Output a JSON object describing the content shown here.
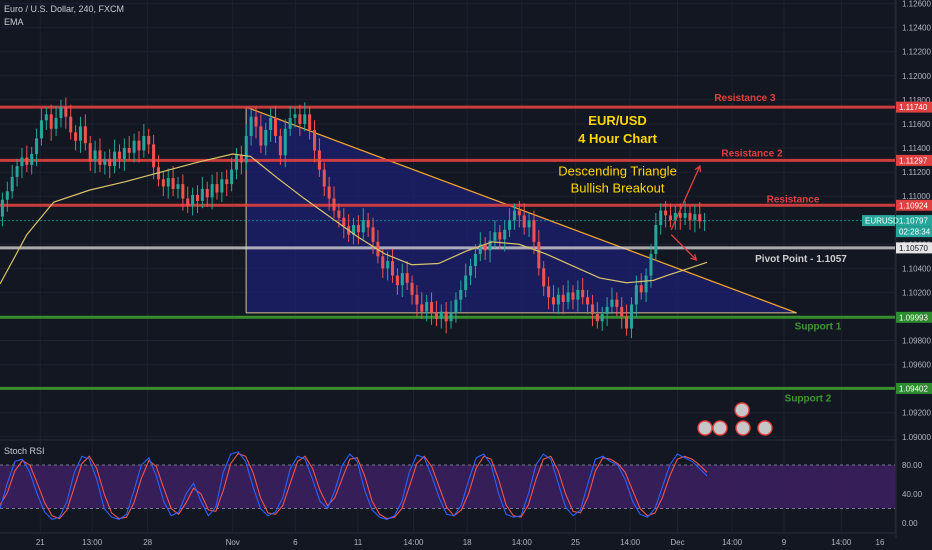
{
  "header": {
    "symbol": "Euro / U.S. Dollar, 240, FXCM",
    "indicator": "EMA"
  },
  "rsi_panel": {
    "label": "Stoch RSI"
  },
  "price_badges": [
    {
      "label": "1.11740",
      "value": 1.1174,
      "color": "#e04040"
    },
    {
      "label": "1.11297",
      "value": 1.11297,
      "color": "#e04040"
    },
    {
      "label": "1.10924",
      "value": 1.10924,
      "color": "#e04040"
    },
    {
      "label": "1.10797",
      "value": 1.10797,
      "color": "#26a69a"
    },
    {
      "label": "02:28:34",
      "value": 1.10705,
      "color": "#26a69a"
    },
    {
      "label": "1.10570",
      "value": 1.1057,
      "color": "#e6e6e6"
    },
    {
      "label": "1.09993",
      "value": 1.09993,
      "color": "#2e8b2e"
    },
    {
      "label": "1.09402",
      "value": 1.09402,
      "color": "#2e8b2e"
    }
  ],
  "symbol_tag": {
    "label": "EURUSD",
    "value": 1.10797,
    "color": "#26a69a"
  },
  "colors": {
    "background": "#131722",
    "up": "#26a69a",
    "down": "#ef5350",
    "ema": "#d8c46a",
    "resistance": "#e04040",
    "support": "#3a9a2e",
    "pivot": "#dcdcdc",
    "triangle_fill": "#1b1f6e",
    "triangle_edge": "#f0a030",
    "stoch_k": "#2962ff",
    "stoch_d": "#ef5350",
    "rsi_band": "#3b1f5e"
  },
  "chart_data": {
    "type": "candlestick",
    "ylim": [
      1.0899,
      1.1263
    ],
    "yticks": [
      "1.12600",
      "1.12400",
      "1.12200",
      "1.12000",
      "1.11800",
      "1.11600",
      "1.11400",
      "1.11200",
      "1.11000",
      "1.10800",
      "1.10600",
      "1.10400",
      "1.10200",
      "1.10000",
      "1.09800",
      "1.09600",
      "1.09400",
      "1.09200",
      "1.09000"
    ],
    "ytick_values": [
      1.126,
      1.124,
      1.122,
      1.12,
      1.118,
      1.116,
      1.114,
      1.112,
      1.11,
      1.108,
      1.106,
      1.104,
      1.102,
      1.1,
      1.098,
      1.096,
      1.094,
      1.092,
      1.09
    ],
    "xticks": [
      "21",
      "13:00",
      "28",
      "Nov",
      "6",
      "11",
      "14:00",
      "18",
      "14:00",
      "25",
      "14:00",
      "Dec",
      "14:00",
      "9",
      "14:00",
      "16"
    ],
    "xtick_frac": [
      0.045,
      0.103,
      0.165,
      0.26,
      0.33,
      0.4,
      0.462,
      0.522,
      0.583,
      0.643,
      0.704,
      0.757,
      0.818,
      0.876,
      0.94,
      1.0
    ],
    "candle_count": 150,
    "candle_range_frac": [
      0.0,
      0.79
    ],
    "candles": [
      {
        "o": 1.1083,
        "c": 1.1097
      },
      {
        "o": 1.1097,
        "c": 1.1104
      },
      {
        "o": 1.1104,
        "c": 1.1116
      },
      {
        "o": 1.1116,
        "c": 1.1125
      },
      {
        "o": 1.1125,
        "c": 1.1132
      },
      {
        "o": 1.1132,
        "c": 1.1126
      },
      {
        "o": 1.1126,
        "c": 1.1135
      },
      {
        "o": 1.1135,
        "c": 1.1148
      },
      {
        "o": 1.1148,
        "c": 1.1163
      },
      {
        "o": 1.1163,
        "c": 1.1168
      },
      {
        "o": 1.1168,
        "c": 1.1156
      },
      {
        "o": 1.1156,
        "c": 1.1165
      },
      {
        "o": 1.1165,
        "c": 1.1174
      },
      {
        "o": 1.1174,
        "c": 1.1166
      },
      {
        "o": 1.1166,
        "c": 1.1153
      },
      {
        "o": 1.1153,
        "c": 1.1146
      },
      {
        "o": 1.1146,
        "c": 1.1158
      },
      {
        "o": 1.1158,
        "c": 1.1144
      },
      {
        "o": 1.1144,
        "c": 1.1129
      },
      {
        "o": 1.1129,
        "c": 1.1138
      },
      {
        "o": 1.1138,
        "c": 1.1126
      },
      {
        "o": 1.1126,
        "c": 1.1131
      },
      {
        "o": 1.1131,
        "c": 1.1125
      },
      {
        "o": 1.1125,
        "c": 1.1137
      },
      {
        "o": 1.1137,
        "c": 1.1131
      },
      {
        "o": 1.1131,
        "c": 1.114
      },
      {
        "o": 1.114,
        "c": 1.1136
      },
      {
        "o": 1.1136,
        "c": 1.1146
      },
      {
        "o": 1.1146,
        "c": 1.1138
      },
      {
        "o": 1.1138,
        "c": 1.115
      },
      {
        "o": 1.115,
        "c": 1.1143
      },
      {
        "o": 1.1143,
        "c": 1.1124
      },
      {
        "o": 1.1124,
        "c": 1.1114
      },
      {
        "o": 1.1114,
        "c": 1.1108
      },
      {
        "o": 1.1108,
        "c": 1.1115
      },
      {
        "o": 1.1115,
        "c": 1.1106
      },
      {
        "o": 1.1106,
        "c": 1.111
      },
      {
        "o": 1.111,
        "c": 1.1098
      },
      {
        "o": 1.1098,
        "c": 1.1092
      },
      {
        "o": 1.1092,
        "c": 1.1101
      },
      {
        "o": 1.1101,
        "c": 1.1096
      },
      {
        "o": 1.1096,
        "c": 1.1106
      },
      {
        "o": 1.1106,
        "c": 1.1099
      },
      {
        "o": 1.1099,
        "c": 1.111
      },
      {
        "o": 1.111,
        "c": 1.1103
      },
      {
        "o": 1.1103,
        "c": 1.1114
      },
      {
        "o": 1.1114,
        "c": 1.111
      },
      {
        "o": 1.111,
        "c": 1.1122
      },
      {
        "o": 1.1122,
        "c": 1.1134
      },
      {
        "o": 1.1134,
        "c": 1.1128
      },
      {
        "o": 1.1128,
        "c": 1.115
      },
      {
        "o": 1.115,
        "c": 1.1166
      },
      {
        "o": 1.1166,
        "c": 1.1158
      },
      {
        "o": 1.1158,
        "c": 1.1142
      },
      {
        "o": 1.1142,
        "c": 1.1155
      },
      {
        "o": 1.1155,
        "c": 1.1165
      },
      {
        "o": 1.1165,
        "c": 1.115
      },
      {
        "o": 1.115,
        "c": 1.1134
      },
      {
        "o": 1.1134,
        "c": 1.1156
      },
      {
        "o": 1.1156,
        "c": 1.1165
      },
      {
        "o": 1.1165,
        "c": 1.1168
      },
      {
        "o": 1.1168,
        "c": 1.116
      },
      {
        "o": 1.116,
        "c": 1.1168
      },
      {
        "o": 1.1168,
        "c": 1.1155
      },
      {
        "o": 1.1155,
        "c": 1.1138
      },
      {
        "o": 1.1138,
        "c": 1.1122
      },
      {
        "o": 1.1122,
        "c": 1.1108
      },
      {
        "o": 1.1108,
        "c": 1.1098
      },
      {
        "o": 1.1098,
        "c": 1.1088
      },
      {
        "o": 1.1088,
        "c": 1.1082
      },
      {
        "o": 1.1082,
        "c": 1.1075
      },
      {
        "o": 1.1075,
        "c": 1.1068
      },
      {
        "o": 1.1068,
        "c": 1.1076
      },
      {
        "o": 1.1076,
        "c": 1.107
      },
      {
        "o": 1.107,
        "c": 1.108
      },
      {
        "o": 1.108,
        "c": 1.1074
      },
      {
        "o": 1.1074,
        "c": 1.1062
      },
      {
        "o": 1.1062,
        "c": 1.105
      },
      {
        "o": 1.105,
        "c": 1.104
      },
      {
        "o": 1.104,
        "c": 1.1046
      },
      {
        "o": 1.1046,
        "c": 1.1034
      },
      {
        "o": 1.1034,
        "c": 1.1026
      },
      {
        "o": 1.1026,
        "c": 1.1036
      },
      {
        "o": 1.1036,
        "c": 1.1028
      },
      {
        "o": 1.1028,
        "c": 1.1018
      },
      {
        "o": 1.1018,
        "c": 1.101
      },
      {
        "o": 1.101,
        "c": 1.1004
      },
      {
        "o": 1.1004,
        "c": 1.1012
      },
      {
        "o": 1.1012,
        "c": 1.1003
      },
      {
        "o": 1.1003,
        "c": 1.0998
      },
      {
        "o": 1.0998,
        "c": 1.1004
      },
      {
        "o": 1.1004,
        "c": 1.0996
      },
      {
        "o": 1.0996,
        "c": 1.1003
      },
      {
        "o": 1.1003,
        "c": 1.1014
      },
      {
        "o": 1.1014,
        "c": 1.1022
      },
      {
        "o": 1.1022,
        "c": 1.1034
      },
      {
        "o": 1.1034,
        "c": 1.1042
      },
      {
        "o": 1.1042,
        "c": 1.1052
      },
      {
        "o": 1.1052,
        "c": 1.106
      },
      {
        "o": 1.106,
        "c": 1.1055
      },
      {
        "o": 1.1055,
        "c": 1.1063
      },
      {
        "o": 1.1063,
        "c": 1.107
      },
      {
        "o": 1.107,
        "c": 1.1064
      },
      {
        "o": 1.1064,
        "c": 1.1072
      },
      {
        "o": 1.1072,
        "c": 1.108
      },
      {
        "o": 1.108,
        "c": 1.1088
      },
      {
        "o": 1.1088,
        "c": 1.1084
      },
      {
        "o": 1.1084,
        "c": 1.1074
      },
      {
        "o": 1.1074,
        "c": 1.108
      },
      {
        "o": 1.108,
        "c": 1.1062
      },
      {
        "o": 1.1062,
        "c": 1.104
      },
      {
        "o": 1.104,
        "c": 1.1025
      },
      {
        "o": 1.1025,
        "c": 1.1016
      },
      {
        "o": 1.1016,
        "c": 1.101
      },
      {
        "o": 1.101,
        "c": 1.1018
      },
      {
        "o": 1.1018,
        "c": 1.1012
      },
      {
        "o": 1.1012,
        "c": 1.102
      },
      {
        "o": 1.102,
        "c": 1.1014
      },
      {
        "o": 1.1014,
        "c": 1.1022
      },
      {
        "o": 1.1022,
        "c": 1.1016
      },
      {
        "o": 1.1016,
        "c": 1.101
      },
      {
        "o": 1.101,
        "c": 1.1002
      },
      {
        "o": 1.1002,
        "c": 1.0996
      },
      {
        "o": 1.0996,
        "c": 1.1002
      },
      {
        "o": 1.1002,
        "c": 1.1008
      },
      {
        "o": 1.1008,
        "c": 1.1014
      },
      {
        "o": 1.1014,
        "c": 1.1008
      },
      {
        "o": 1.1008,
        "c": 1.1
      },
      {
        "o": 1.1,
        "c": 1.099
      },
      {
        "o": 1.099,
        "c": 1.101
      },
      {
        "o": 1.101,
        "c": 1.1026
      },
      {
        "o": 1.1026,
        "c": 1.102
      },
      {
        "o": 1.102,
        "c": 1.1034
      },
      {
        "o": 1.1034,
        "c": 1.1052
      },
      {
        "o": 1.1052,
        "c": 1.1076
      },
      {
        "o": 1.1076,
        "c": 1.1088
      },
      {
        "o": 1.1088,
        "c": 1.1084
      },
      {
        "o": 1.1084,
        "c": 1.108
      },
      {
        "o": 1.108,
        "c": 1.1086
      },
      {
        "o": 1.1086,
        "c": 1.1082
      },
      {
        "o": 1.1082,
        "c": 1.1086
      },
      {
        "o": 1.1086,
        "c": 1.108
      },
      {
        "o": 1.108,
        "c": 1.1085
      },
      {
        "o": 1.1085,
        "c": 1.1079
      },
      {
        "o": 1.1079,
        "c": 1.108
      }
    ],
    "ema": [
      [
        0.0,
        1.1027
      ],
      [
        0.03,
        1.1068
      ],
      [
        0.06,
        1.1095
      ],
      [
        0.1,
        1.1105
      ],
      [
        0.14,
        1.1112
      ],
      [
        0.18,
        1.112
      ],
      [
        0.22,
        1.1128
      ],
      [
        0.26,
        1.1135
      ],
      [
        0.28,
        1.1133
      ],
      [
        0.31,
        1.1115
      ],
      [
        0.34,
        1.1098
      ],
      [
        0.37,
        1.1082
      ],
      [
        0.4,
        1.1066
      ],
      [
        0.43,
        1.1052
      ],
      [
        0.46,
        1.1043
      ],
      [
        0.49,
        1.1044
      ],
      [
        0.52,
        1.1054
      ],
      [
        0.55,
        1.1062
      ],
      [
        0.58,
        1.106
      ],
      [
        0.61,
        1.1052
      ],
      [
        0.64,
        1.1042
      ],
      [
        0.67,
        1.1032
      ],
      [
        0.7,
        1.1028
      ],
      [
        0.73,
        1.103
      ],
      [
        0.745,
        1.1034
      ],
      [
        0.77,
        1.104
      ],
      [
        0.79,
        1.1045
      ]
    ],
    "triangle": {
      "apex_frac": 0.89,
      "top_start": [
        0.275,
        1.1174
      ],
      "bottom_start": [
        0.275,
        1.1003
      ],
      "bottom_end": [
        0.89,
        1.1003
      ]
    },
    "levels": [
      {
        "name": "Resistance 3",
        "label": "Resistance 3",
        "value": 1.1174,
        "role": "resistance"
      },
      {
        "name": "Resistance 2",
        "label": "Resistance 2",
        "value": 1.11297,
        "role": "resistance"
      },
      {
        "name": "Resistance",
        "label": "Resistance",
        "value": 1.10924,
        "role": "resistance"
      },
      {
        "name": "Pivot Point",
        "label": "Pivot Point - 1.1057",
        "value": 1.1057,
        "role": "pivot"
      },
      {
        "name": "Support 1",
        "label": "Support 1",
        "value": 1.09993,
        "role": "support"
      },
      {
        "name": "Support 2",
        "label": "Support 2",
        "value": 1.09402,
        "role": "support"
      }
    ],
    "annotations": [
      {
        "text": "EUR/USD",
        "value": 1.1159,
        "frac": 0.69,
        "color": "#ffd700",
        "size": 13,
        "bold": true
      },
      {
        "text": "4 Hour Chart",
        "value": 1.1144,
        "frac": 0.69,
        "color": "#ffd700",
        "size": 13,
        "bold": true
      },
      {
        "text": "Descending Triangle",
        "value": 1.1117,
        "frac": 0.69,
        "color": "#ffd700",
        "size": 13,
        "bold": false
      },
      {
        "text": "Bullish Breakout",
        "value": 1.1103,
        "frac": 0.69,
        "color": "#ffd700",
        "size": 13,
        "bold": false
      }
    ],
    "arrows": [
      {
        "from": [
          0.75,
          1.1072
        ],
        "to": [
          0.782,
          1.1125
        ],
        "color": "#e04040"
      },
      {
        "from": [
          0.75,
          1.1068
        ],
        "to": [
          0.778,
          1.1047
        ],
        "color": "#e04040"
      }
    ],
    "current_price_dashed": 1.10797,
    "stoch_rsi": {
      "yticks": [
        "80.00",
        "40.00",
        "0.00"
      ],
      "ytick_values": [
        80,
        40,
        0
      ],
      "band": [
        20,
        80
      ],
      "k": [
        20,
        55,
        85,
        88,
        70,
        40,
        15,
        5,
        8,
        30,
        70,
        92,
        88,
        60,
        20,
        8,
        5,
        12,
        45,
        80,
        90,
        65,
        30,
        10,
        15,
        40,
        55,
        30,
        10,
        22,
        70,
        95,
        98,
        85,
        50,
        20,
        10,
        15,
        35,
        75,
        92,
        88,
        60,
        30,
        20,
        45,
        80,
        95,
        85,
        45,
        18,
        8,
        5,
        10,
        30,
        70,
        94,
        90,
        65,
        35,
        12,
        10,
        25,
        60,
        90,
        95,
        80,
        40,
        12,
        8,
        10,
        40,
        80,
        95,
        88,
        55,
        22,
        10,
        18,
        55,
        88,
        92,
        85,
        80,
        60,
        30,
        12,
        8,
        20,
        50,
        80,
        95,
        90,
        85,
        75,
        65
      ],
      "d": [
        25,
        42,
        72,
        86,
        80,
        55,
        28,
        10,
        6,
        18,
        50,
        82,
        92,
        75,
        40,
        14,
        6,
        8,
        28,
        62,
        86,
        78,
        48,
        20,
        12,
        28,
        48,
        40,
        18,
        16,
        45,
        82,
        96,
        92,
        70,
        35,
        14,
        12,
        24,
        55,
        85,
        92,
        75,
        45,
        24,
        35,
        62,
        88,
        90,
        65,
        30,
        12,
        6,
        8,
        20,
        50,
        82,
        92,
        78,
        50,
        22,
        10,
        18,
        42,
        76,
        92,
        88,
        60,
        25,
        10,
        8,
        25,
        60,
        88,
        92,
        72,
        40,
        16,
        14,
        36,
        72,
        90,
        88,
        82,
        70,
        45,
        20,
        10,
        14,
        35,
        65,
        88,
        92,
        88,
        80,
        70
      ]
    }
  }
}
